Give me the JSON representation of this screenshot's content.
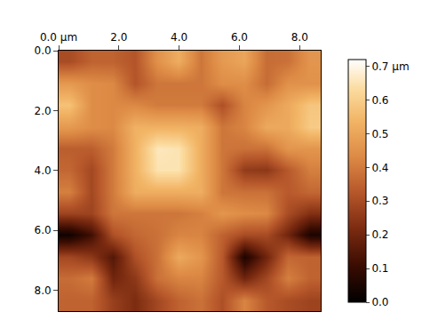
{
  "chart_data": {
    "type": "heatmap",
    "x": [
      0.36,
      1.09,
      1.81,
      2.54,
      3.26,
      3.99,
      4.71,
      5.44,
      6.16,
      6.89,
      7.61,
      8.34
    ],
    "y": [
      0.36,
      1.09,
      1.81,
      2.54,
      3.26,
      3.99,
      4.71,
      5.44,
      6.16,
      6.89,
      7.61,
      8.34
    ],
    "z": [
      [
        0.3,
        0.35,
        0.35,
        0.32,
        0.45,
        0.52,
        0.39,
        0.47,
        0.5,
        0.37,
        0.38,
        0.46
      ],
      [
        0.47,
        0.44,
        0.43,
        0.32,
        0.39,
        0.39,
        0.39,
        0.44,
        0.44,
        0.37,
        0.45,
        0.45
      ],
      [
        0.57,
        0.44,
        0.43,
        0.43,
        0.4,
        0.4,
        0.4,
        0.31,
        0.42,
        0.46,
        0.51,
        0.58
      ],
      [
        0.47,
        0.44,
        0.43,
        0.53,
        0.53,
        0.53,
        0.52,
        0.39,
        0.42,
        0.51,
        0.51,
        0.59
      ],
      [
        0.34,
        0.34,
        0.4,
        0.53,
        0.66,
        0.65,
        0.52,
        0.39,
        0.38,
        0.38,
        0.46,
        0.46
      ],
      [
        0.36,
        0.29,
        0.4,
        0.53,
        0.65,
        0.65,
        0.52,
        0.39,
        0.26,
        0.25,
        0.33,
        0.41
      ],
      [
        0.41,
        0.29,
        0.4,
        0.52,
        0.52,
        0.52,
        0.52,
        0.39,
        0.38,
        0.38,
        0.33,
        0.36
      ],
      [
        0.28,
        0.28,
        0.39,
        0.39,
        0.39,
        0.39,
        0.41,
        0.46,
        0.44,
        0.43,
        0.3,
        0.23
      ],
      [
        0.03,
        0.12,
        0.31,
        0.36,
        0.38,
        0.42,
        0.42,
        0.35,
        0.3,
        0.3,
        0.2,
        0.05
      ],
      [
        0.29,
        0.25,
        0.15,
        0.31,
        0.38,
        0.51,
        0.46,
        0.33,
        0.05,
        0.2,
        0.36,
        0.35
      ],
      [
        0.37,
        0.4,
        0.2,
        0.25,
        0.38,
        0.42,
        0.42,
        0.33,
        0.2,
        0.29,
        0.41,
        0.35
      ],
      [
        0.35,
        0.35,
        0.27,
        0.22,
        0.29,
        0.35,
        0.38,
        0.31,
        0.42,
        0.33,
        0.3,
        0.28
      ]
    ],
    "xlim": [
      0,
      8.7
    ],
    "ylim": [
      8.7,
      0
    ],
    "xticks": [
      {
        "value": 0,
        "label": "0.0 µm"
      },
      {
        "value": 2,
        "label": "2.0"
      },
      {
        "value": 4,
        "label": "4.0"
      },
      {
        "value": 6,
        "label": "6.0"
      },
      {
        "value": 8,
        "label": "8.0"
      }
    ],
    "yticks": [
      {
        "value": 0,
        "label": "0.0"
      },
      {
        "value": 2,
        "label": "2.0"
      },
      {
        "value": 4,
        "label": "4.0"
      },
      {
        "value": 6,
        "label": "6.0"
      },
      {
        "value": 8,
        "label": "8.0"
      }
    ],
    "colorbar": {
      "range": [
        0,
        0.72
      ],
      "ticks": [
        {
          "value": 0,
          "label": "0.0"
        },
        0.1,
        0.2,
        0.3,
        0.4,
        0.5,
        0.6,
        {
          "value": 0.7,
          "label": "0.7 µm"
        }
      ]
    },
    "grid": false
  }
}
